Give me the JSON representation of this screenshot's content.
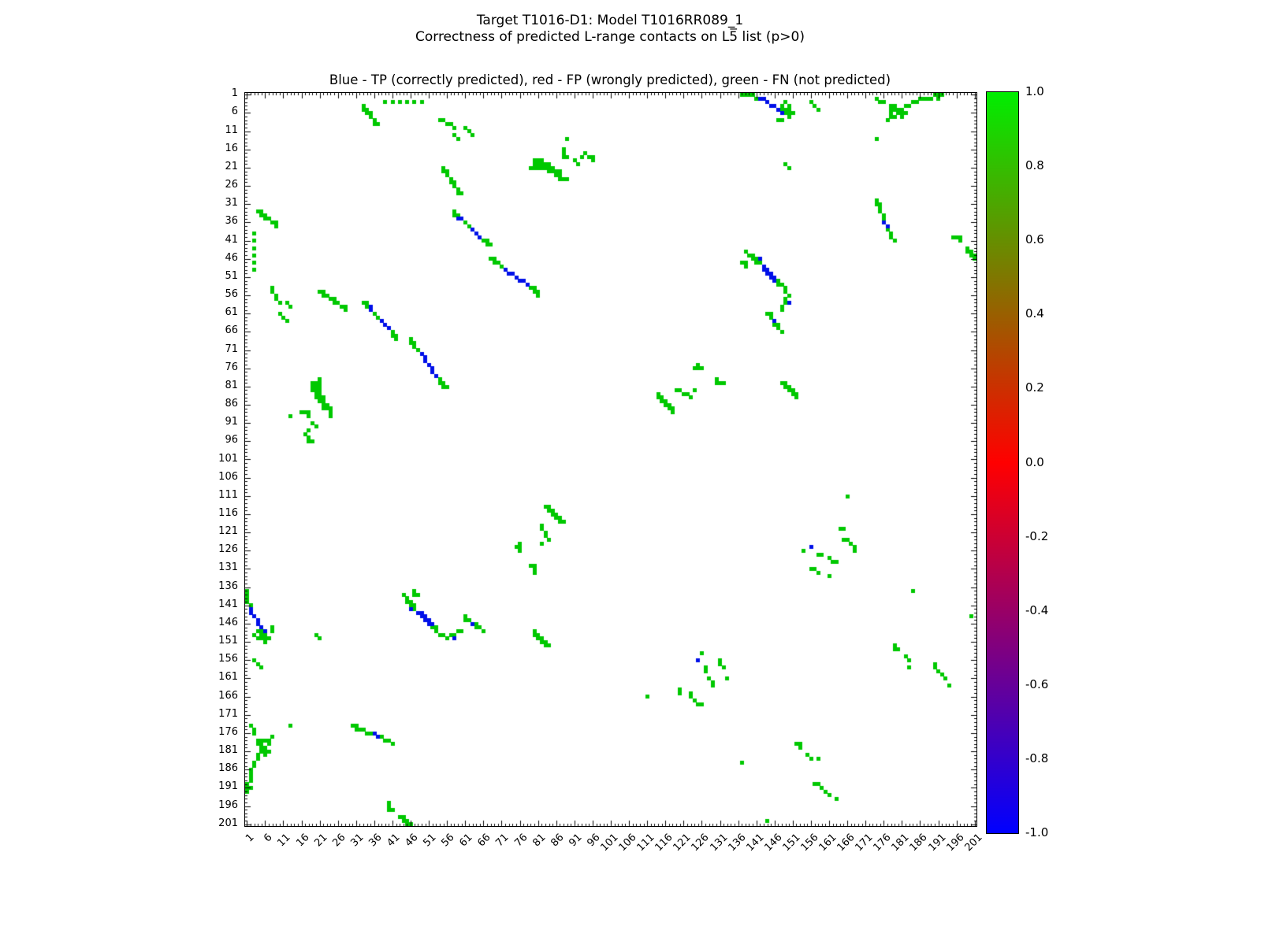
{
  "figure": {
    "suptitle_line1": "Target T1016-D1: Model T1016RR089_1",
    "suptitle_line2": "Correctness of predicted L-range contacts on L5̅ list (p>0)",
    "axes_title": "Blue - TP (correctly predicted), red - FP (wrongly predicted), green - FN (not predicted)"
  },
  "chart_data": {
    "type": "heatmap",
    "title": "Blue - TP (correctly predicted), red - FP (wrongly predicted), green - FN (not predicted)",
    "suptitle": [
      "Target T1016-D1: Model T1016RR089_1",
      "Correctness of predicted L-range contacts on L5̅ list (p>0)"
    ],
    "axis": {
      "min": 1,
      "max": 201,
      "tick_values": [
        1,
        6,
        11,
        16,
        21,
        26,
        31,
        36,
        41,
        46,
        51,
        56,
        61,
        66,
        71,
        76,
        81,
        86,
        91,
        96,
        101,
        106,
        111,
        116,
        121,
        126,
        131,
        136,
        141,
        146,
        151,
        156,
        161,
        166,
        171,
        176,
        181,
        186,
        191,
        196,
        201
      ]
    },
    "colorbar": {
      "min": -1.0,
      "max": 1.0,
      "tick_labels": [
        "1.0",
        "0.8",
        "0.6",
        "0.4",
        "0.2",
        "0.0",
        "-0.2",
        "-0.4",
        "-0.6",
        "-0.8",
        "-1.0"
      ],
      "gradient_top": "#00ee00",
      "gradient_mid": "#ff0000",
      "gradient_bottom": "#0000ff"
    },
    "colors": {
      "tp": "#0010e8",
      "fp": "#ff2000",
      "fn": "#00c800"
    },
    "symmetric": true,
    "contacts": {
      "fn_pairs": [
        [
          1,
          137
        ],
        [
          1,
          138
        ],
        [
          1,
          139
        ],
        [
          1,
          140
        ],
        [
          2,
          141
        ],
        [
          4,
          148
        ],
        [
          5,
          148
        ],
        [
          5,
          149
        ],
        [
          6,
          149
        ],
        [
          6,
          150
        ],
        [
          7,
          150
        ],
        [
          8,
          147
        ],
        [
          8,
          148
        ],
        [
          3,
          149
        ],
        [
          4,
          150
        ],
        [
          5,
          150
        ],
        [
          6,
          151
        ],
        [
          1,
          190
        ],
        [
          1,
          191
        ],
        [
          1,
          192
        ],
        [
          2,
          186
        ],
        [
          2,
          187
        ],
        [
          2,
          188
        ],
        [
          2,
          189
        ],
        [
          2,
          191
        ],
        [
          3,
          184
        ],
        [
          3,
          185
        ],
        [
          4,
          182
        ],
        [
          4,
          183
        ],
        [
          5,
          181
        ],
        [
          6,
          180
        ],
        [
          7,
          178
        ],
        [
          7,
          179
        ],
        [
          8,
          177
        ],
        [
          2,
          174
        ],
        [
          3,
          175
        ],
        [
          3,
          176
        ],
        [
          4,
          178
        ],
        [
          4,
          179
        ],
        [
          5,
          178
        ],
        [
          5,
          179
        ],
        [
          5,
          180
        ],
        [
          6,
          178
        ],
        [
          6,
          181
        ],
        [
          6,
          182
        ],
        [
          7,
          181
        ],
        [
          3,
          39
        ],
        [
          3,
          41
        ],
        [
          3,
          43
        ],
        [
          3,
          45
        ],
        [
          3,
          47
        ],
        [
          3,
          49
        ],
        [
          4,
          33
        ],
        [
          5,
          33
        ],
        [
          5,
          34
        ],
        [
          6,
          34
        ],
        [
          6,
          35
        ],
        [
          7,
          35
        ],
        [
          8,
          36
        ],
        [
          9,
          36
        ],
        [
          9,
          37
        ],
        [
          8,
          54
        ],
        [
          8,
          55
        ],
        [
          9,
          56
        ],
        [
          9,
          57
        ],
        [
          10,
          58
        ],
        [
          10,
          61
        ],
        [
          11,
          62
        ],
        [
          12,
          63
        ],
        [
          12,
          58
        ],
        [
          13,
          59
        ],
        [
          13,
          89
        ],
        [
          16,
          88
        ],
        [
          17,
          88
        ],
        [
          18,
          88
        ],
        [
          18,
          89
        ],
        [
          19,
          80
        ],
        [
          19,
          81
        ],
        [
          19,
          82
        ],
        [
          20,
          80
        ],
        [
          20,
          81
        ],
        [
          20,
          82
        ],
        [
          20,
          83
        ],
        [
          20,
          84
        ],
        [
          21,
          79
        ],
        [
          21,
          80
        ],
        [
          21,
          81
        ],
        [
          21,
          82
        ],
        [
          21,
          83
        ],
        [
          21,
          84
        ],
        [
          21,
          85
        ],
        [
          22,
          84
        ],
        [
          22,
          85
        ],
        [
          22,
          86
        ],
        [
          22,
          87
        ],
        [
          23,
          86
        ],
        [
          23,
          87
        ],
        [
          24,
          87
        ],
        [
          24,
          88
        ],
        [
          24,
          89
        ],
        [
          19,
          91
        ],
        [
          20,
          92
        ],
        [
          18,
          93
        ],
        [
          17,
          94
        ],
        [
          18,
          95
        ],
        [
          18,
          96
        ],
        [
          19,
          96
        ],
        [
          21,
          55
        ],
        [
          22,
          55
        ],
        [
          22,
          56
        ],
        [
          23,
          56
        ],
        [
          24,
          57
        ],
        [
          25,
          57
        ],
        [
          25,
          58
        ],
        [
          26,
          58
        ],
        [
          27,
          59
        ],
        [
          28,
          59
        ],
        [
          28,
          60
        ],
        [
          33,
          58
        ],
        [
          34,
          58
        ],
        [
          34,
          59
        ],
        [
          36,
          61
        ],
        [
          37,
          62
        ],
        [
          41,
          66
        ],
        [
          41,
          67
        ],
        [
          42,
          67
        ],
        [
          42,
          68
        ],
        [
          46,
          68
        ],
        [
          46,
          69
        ],
        [
          47,
          69
        ],
        [
          47,
          70
        ],
        [
          48,
          71
        ],
        [
          54,
          79
        ],
        [
          54,
          80
        ],
        [
          55,
          80
        ],
        [
          55,
          81
        ],
        [
          56,
          81
        ],
        [
          44,
          138
        ],
        [
          45,
          139
        ],
        [
          45,
          140
        ],
        [
          46,
          140
        ],
        [
          46,
          141
        ],
        [
          47,
          137
        ],
        [
          47,
          138
        ],
        [
          47,
          141
        ],
        [
          47,
          142
        ],
        [
          48,
          138
        ],
        [
          52,
          147
        ],
        [
          53,
          147
        ],
        [
          53,
          148
        ],
        [
          54,
          149
        ],
        [
          55,
          149
        ],
        [
          56,
          150
        ],
        [
          57,
          149
        ],
        [
          58,
          149
        ],
        [
          59,
          148
        ],
        [
          60,
          148
        ],
        [
          61,
          144
        ],
        [
          61,
          145
        ],
        [
          62,
          145
        ],
        [
          64,
          146
        ],
        [
          64,
          147
        ],
        [
          65,
          147
        ],
        [
          66,
          148
        ],
        [
          40,
          195
        ],
        [
          40,
          196
        ],
        [
          40,
          197
        ],
        [
          41,
          197
        ],
        [
          43,
          199
        ],
        [
          44,
          199
        ],
        [
          44,
          200
        ],
        [
          45,
          200
        ],
        [
          45,
          201
        ],
        [
          46,
          201
        ],
        [
          75,
          125
        ],
        [
          76,
          124
        ],
        [
          76,
          125
        ],
        [
          76,
          126
        ],
        [
          79,
          130
        ],
        [
          80,
          130
        ],
        [
          80,
          131
        ],
        [
          80,
          132
        ],
        [
          82,
          119
        ],
        [
          82,
          120
        ],
        [
          82,
          124
        ],
        [
          83,
          114
        ],
        [
          83,
          121
        ],
        [
          83,
          122
        ],
        [
          84,
          114
        ],
        [
          84,
          115
        ],
        [
          84,
          123
        ],
        [
          85,
          115
        ],
        [
          85,
          116
        ],
        [
          86,
          116
        ],
        [
          86,
          117
        ],
        [
          87,
          117
        ],
        [
          87,
          118
        ],
        [
          88,
          118
        ],
        [
          80,
          148
        ],
        [
          80,
          149
        ],
        [
          81,
          149
        ],
        [
          81,
          150
        ],
        [
          82,
          150
        ],
        [
          82,
          151
        ],
        [
          83,
          151
        ],
        [
          83,
          152
        ],
        [
          84,
          152
        ],
        [
          111,
          166
        ],
        [
          120,
          164
        ],
        [
          120,
          165
        ],
        [
          123,
          165
        ],
        [
          123,
          166
        ],
        [
          124,
          167
        ],
        [
          125,
          168
        ],
        [
          126,
          154
        ],
        [
          126,
          168
        ],
        [
          127,
          158
        ],
        [
          127,
          159
        ],
        [
          128,
          161
        ],
        [
          129,
          162
        ],
        [
          129,
          163
        ],
        [
          131,
          156
        ],
        [
          131,
          157
        ],
        [
          132,
          158
        ],
        [
          133,
          161
        ],
        [
          137,
          184
        ],
        [
          144,
          200
        ],
        [
          20,
          149
        ],
        [
          21,
          150
        ],
        [
          152,
          179
        ],
        [
          153,
          179
        ],
        [
          153,
          180
        ],
        [
          155,
          182
        ],
        [
          156,
          183
        ],
        [
          158,
          183
        ],
        [
          157,
          190
        ],
        [
          158,
          190
        ],
        [
          159,
          191
        ],
        [
          160,
          192
        ],
        [
          161,
          193
        ],
        [
          163,
          194
        ],
        [
          3,
          156
        ],
        [
          4,
          157
        ],
        [
          5,
          158
        ],
        [
          30,
          174
        ],
        [
          31,
          174
        ],
        [
          31,
          175
        ],
        [
          32,
          175
        ],
        [
          33,
          175
        ],
        [
          34,
          176
        ],
        [
          35,
          176
        ],
        [
          38,
          177
        ],
        [
          39,
          178
        ],
        [
          40,
          178
        ],
        [
          41,
          179
        ],
        [
          13,
          174
        ]
      ],
      "fp_pairs": [],
      "tp_pairs": [
        [
          2,
          142
        ],
        [
          2,
          143
        ],
        [
          3,
          144
        ],
        [
          4,
          145
        ],
        [
          4,
          146
        ],
        [
          5,
          147
        ],
        [
          6,
          148
        ],
        [
          35,
          59
        ],
        [
          35,
          60
        ],
        [
          38,
          63
        ],
        [
          39,
          64
        ],
        [
          40,
          65
        ],
        [
          49,
          72
        ],
        [
          50,
          73
        ],
        [
          50,
          74
        ],
        [
          51,
          75
        ],
        [
          52,
          76
        ],
        [
          52,
          77
        ],
        [
          53,
          78
        ],
        [
          46,
          142
        ],
        [
          48,
          143
        ],
        [
          49,
          143
        ],
        [
          49,
          144
        ],
        [
          50,
          144
        ],
        [
          50,
          145
        ],
        [
          51,
          145
        ],
        [
          51,
          146
        ],
        [
          52,
          146
        ],
        [
          58,
          150
        ],
        [
          63,
          146
        ],
        [
          125,
          156
        ],
        [
          36,
          176
        ],
        [
          37,
          177
        ]
      ]
    }
  }
}
